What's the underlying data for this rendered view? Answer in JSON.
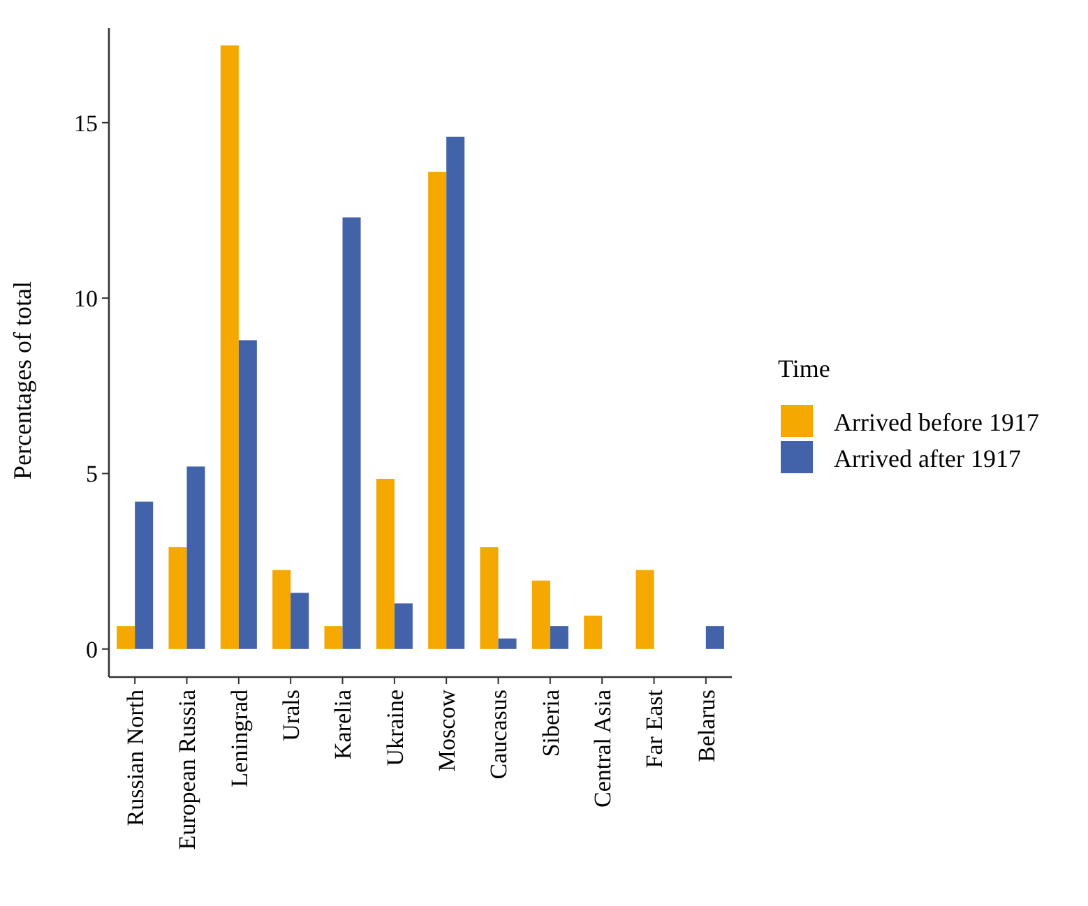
{
  "chart_data": {
    "type": "bar",
    "ylabel": "Percentages of total",
    "legend_title": "Time",
    "legend": "right",
    "categories": [
      "Russian North",
      "European Russia",
      "Leningrad",
      "Urals",
      "Karelia",
      "Ukraine",
      "Moscow",
      "Caucasus",
      "Siberia",
      "Central Asia",
      "Far East",
      "Belarus"
    ],
    "series": [
      {
        "name": "Arrived before 1917",
        "color": "#f5a800",
        "values": [
          0.65,
          2.9,
          17.2,
          2.25,
          0.65,
          4.85,
          13.6,
          2.9,
          1.95,
          0.95,
          2.25,
          0
        ]
      },
      {
        "name": "Arrived after 1917",
        "color": "#4262aa",
        "values": [
          4.2,
          5.2,
          8.8,
          1.6,
          12.3,
          1.3,
          14.6,
          0.3,
          0.65,
          0,
          0,
          0.65
        ]
      }
    ],
    "ylim": [
      -0.8,
      17.7
    ],
    "yticks": [
      0,
      5,
      10,
      15
    ],
    "grid": false
  }
}
